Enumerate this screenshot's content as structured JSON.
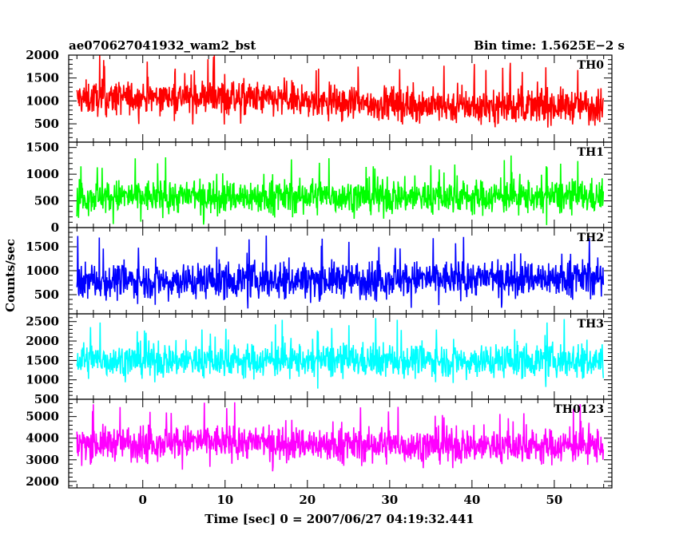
{
  "chart_data": {
    "type": "line",
    "title": "ae070627041932_wam2_bst",
    "subtitle": "Bin time: 1.5625E−2 s",
    "xlabel": "Time [sec] 0 = 2007/06/27 04:19:32.441",
    "ylabel": "Counts/sec",
    "xlim": [
      -9,
      57
    ],
    "x_range_data": [
      -8.0,
      56.0
    ],
    "xticks": [
      0,
      10,
      20,
      30,
      40,
      50
    ],
    "xtick_labels": [
      "0",
      "10",
      "20",
      "30",
      "40",
      "50"
    ],
    "grid": false,
    "panels": [
      {
        "name": "TH0",
        "color": "#ff0000",
        "ylim": [
          100,
          2000
        ],
        "yticks": [
          500,
          1000,
          1500,
          2000
        ],
        "ytick_labels": [
          "500",
          "1000",
          "1500",
          "2000"
        ],
        "mean": 950,
        "noise_spread": 330,
        "envelope": [
          [
            -8,
            1050
          ],
          [
            8,
            1100
          ],
          [
            24,
            950
          ],
          [
            40,
            880
          ],
          [
            56,
            900
          ]
        ]
      },
      {
        "name": "TH1",
        "color": "#00ff00",
        "ylim": [
          0,
          1600
        ],
        "yticks": [
          0,
          500,
          1000,
          1500
        ],
        "ytick_labels": [
          "0",
          "500",
          "1000",
          "1500"
        ],
        "mean": 580,
        "noise_spread": 280,
        "envelope": [
          [
            -8,
            580
          ],
          [
            56,
            580
          ]
        ]
      },
      {
        "name": "TH2",
        "color": "#0000ff",
        "ylim": [
          100,
          1900
        ],
        "yticks": [
          500,
          1000,
          1500
        ],
        "ytick_labels": [
          "500",
          "1000",
          "1500"
        ],
        "mean": 820,
        "noise_spread": 330,
        "envelope": [
          [
            -8,
            780
          ],
          [
            56,
            860
          ]
        ]
      },
      {
        "name": "TH3",
        "color": "#00ffff",
        "ylim": [
          500,
          2700
        ],
        "yticks": [
          500,
          1000,
          1500,
          2000,
          2500
        ],
        "ytick_labels": [
          "500",
          "1000",
          "1500",
          "2000",
          "2500"
        ],
        "mean": 1500,
        "noise_spread": 380,
        "envelope": [
          [
            -8,
            1500
          ],
          [
            56,
            1500
          ]
        ]
      },
      {
        "name": "TH0123",
        "color": "#ff00ff",
        "ylim": [
          1700,
          5800
        ],
        "yticks": [
          2000,
          3000,
          4000,
          5000
        ],
        "ytick_labels": [
          "2000",
          "3000",
          "4000",
          "5000"
        ],
        "mean": 3700,
        "noise_spread": 700,
        "envelope": [
          [
            -8,
            3750
          ],
          [
            8,
            3850
          ],
          [
            30,
            3650
          ],
          [
            56,
            3650
          ]
        ]
      }
    ]
  }
}
